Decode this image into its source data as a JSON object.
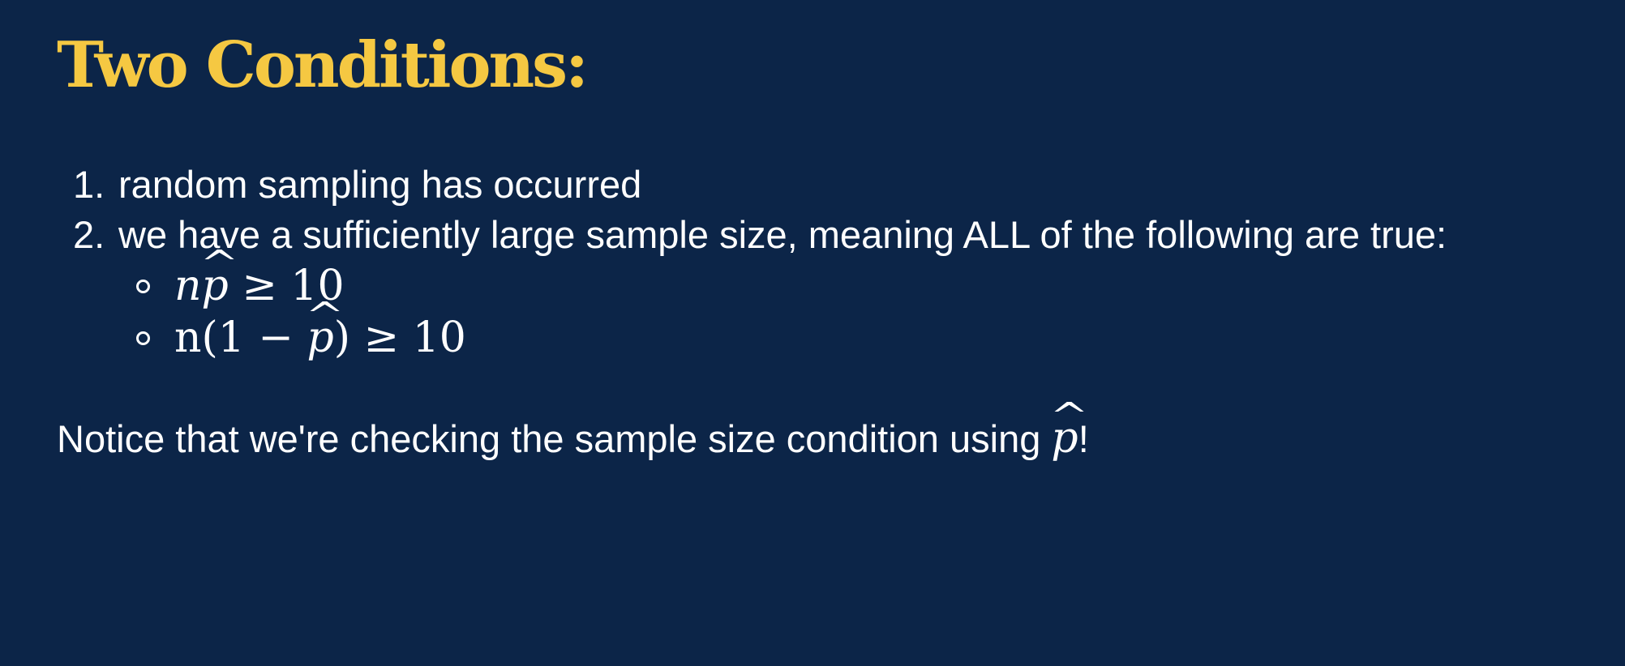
{
  "slide": {
    "title": "Two Conditions:",
    "conditions": [
      {
        "number": "1.",
        "text": "random sampling has occurred"
      },
      {
        "number": "2.",
        "text": "we have a sufficiently large sample size, meaning ALL of the following are true:"
      }
    ],
    "sub_conditions": [
      {
        "lhs_a": "n",
        "lhs_b": "p",
        "rhs": "≥ 10"
      },
      {
        "lhs_a": "n(1 − ",
        "lhs_b": "p",
        "lhs_c": ")",
        "rhs": "≥ 10"
      }
    ],
    "notice": {
      "text": "Notice that we're checking the sample size condition using ",
      "symbol": "p",
      "end": "!"
    }
  },
  "colors": {
    "background": "#0c2548",
    "title": "#f5c842",
    "text": "#ffffff"
  }
}
